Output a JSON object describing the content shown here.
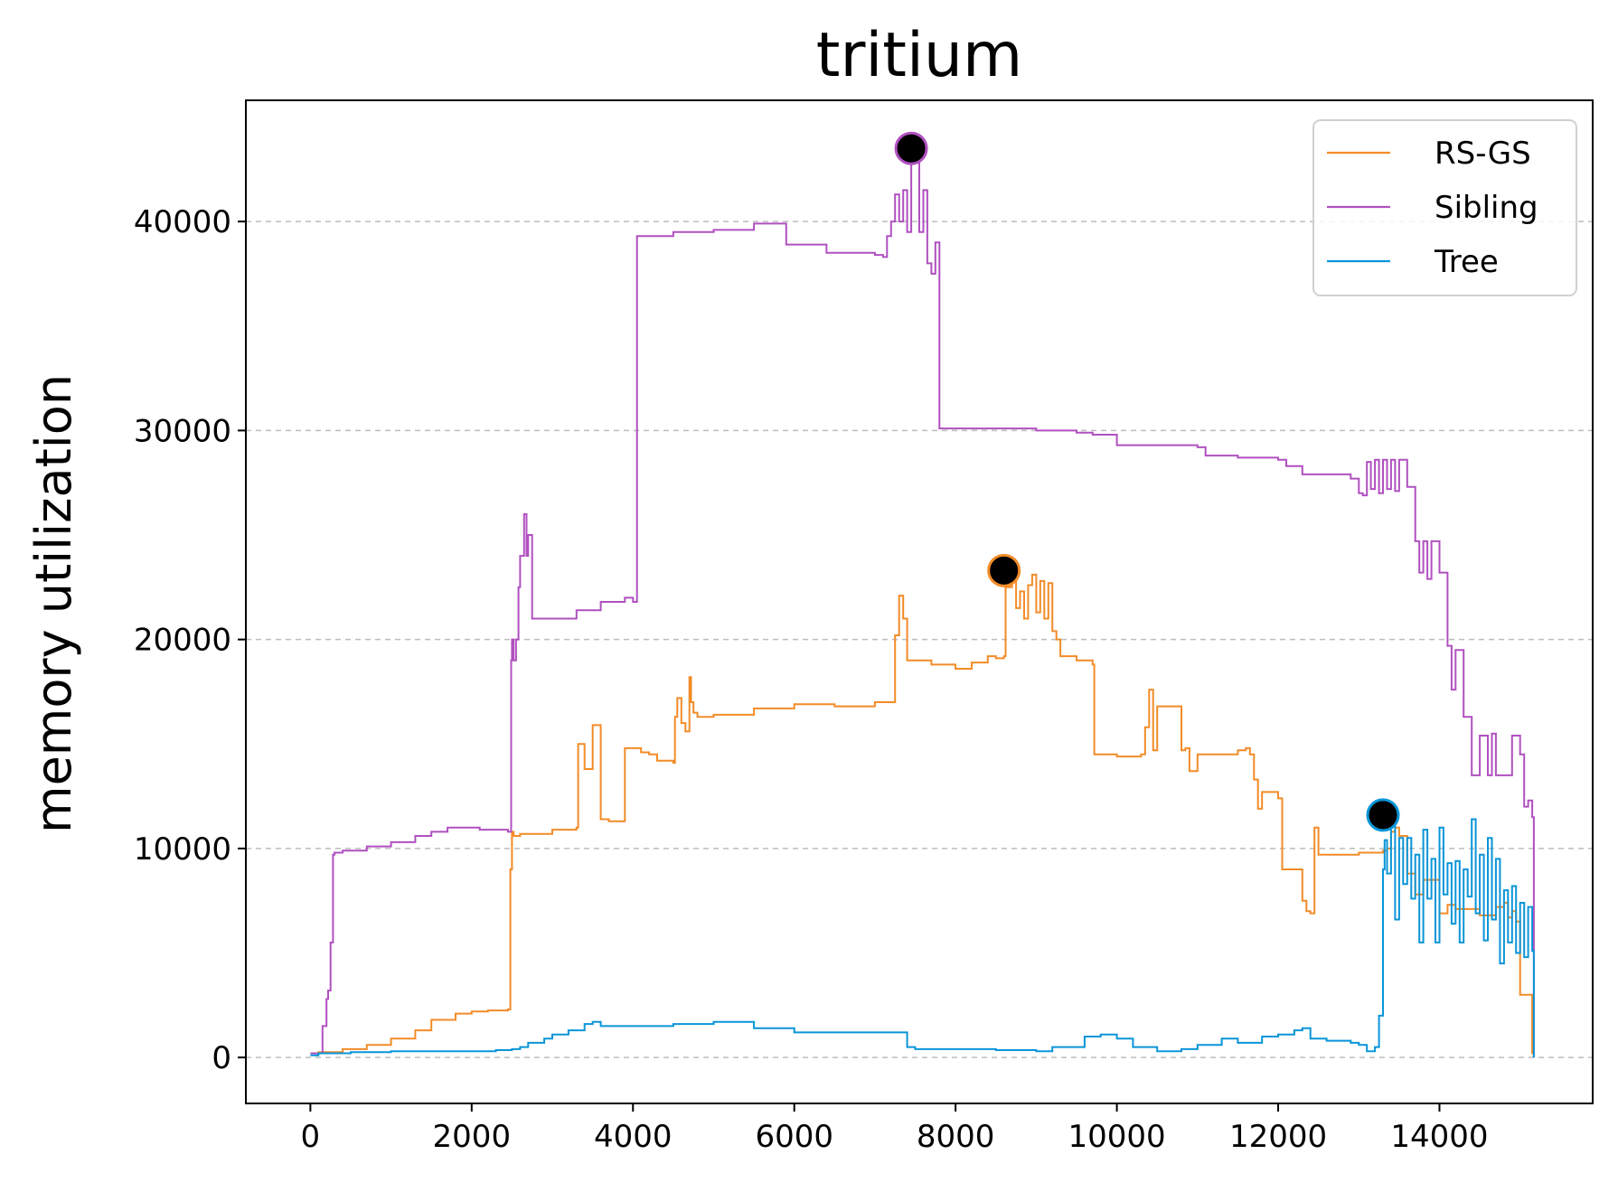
{
  "chart_data": {
    "type": "line",
    "title": "tritium",
    "xlabel": "",
    "ylabel": "memory utilization",
    "xlim": [
      -800,
      15900
    ],
    "ylim": [
      -2200,
      45800
    ],
    "xticks": [
      0,
      2000,
      4000,
      6000,
      8000,
      10000,
      12000,
      14000
    ],
    "yticks": [
      0,
      10000,
      20000,
      30000,
      40000
    ],
    "grid": "y-dashed",
    "legend": "top-right",
    "series": [
      {
        "name": "RS-GS",
        "color": "#f28c28",
        "x": [
          0,
          100,
          400,
          700,
          1000,
          1300,
          1500,
          1800,
          2000,
          2200,
          2450,
          2480,
          2500,
          2520,
          2600,
          3000,
          3300,
          3320,
          3400,
          3500,
          3600,
          3700,
          3900,
          4100,
          4200,
          4300,
          4500,
          4520,
          4550,
          4600,
          4650,
          4700,
          4720,
          4750,
          4800,
          5000,
          5500,
          6000,
          6500,
          7000,
          7200,
          7250,
          7300,
          7350,
          7400,
          7700,
          8000,
          8200,
          8400,
          8500,
          8600,
          8620,
          8700,
          8750,
          8800,
          8850,
          8900,
          8950,
          9000,
          9050,
          9100,
          9150,
          9200,
          9250,
          9300,
          9500,
          9700,
          9720,
          10000,
          10300,
          10350,
          10400,
          10450,
          10500,
          10800,
          10850,
          10900,
          11000,
          11500,
          11600,
          11650,
          11700,
          11750,
          11800,
          12000,
          12050,
          12300,
          12350,
          12400,
          12450,
          12500,
          13000,
          13300,
          13350,
          13400,
          13450,
          13500,
          13600,
          13700,
          13800,
          14000,
          14100,
          14200,
          14500,
          14600,
          14700,
          14800,
          14850,
          14900,
          14950,
          15000,
          15150,
          15170
        ],
        "y": [
          200,
          250,
          400,
          600,
          900,
          1300,
          1800,
          2100,
          2200,
          2250,
          2300,
          9000,
          10800,
          10600,
          10700,
          10900,
          11000,
          15000,
          13800,
          15900,
          11400,
          11300,
          14800,
          14600,
          14500,
          14200,
          14100,
          16300,
          17200,
          16000,
          15600,
          18200,
          17000,
          16500,
          16300,
          16400,
          16700,
          16900,
          16800,
          17000,
          17000,
          20200,
          22100,
          21000,
          19000,
          18800,
          18600,
          18900,
          19200,
          19100,
          19200,
          22500,
          23200,
          21500,
          22300,
          21000,
          22600,
          23100,
          21300,
          22800,
          21000,
          22700,
          20400,
          20000,
          19200,
          19000,
          18800,
          14500,
          14400,
          14500,
          15800,
          17600,
          14700,
          16800,
          14700,
          14800,
          13700,
          14500,
          14700,
          14800,
          14500,
          13300,
          11900,
          12700,
          12400,
          9000,
          7500,
          7000,
          6900,
          11000,
          9700,
          9800,
          9900,
          10000,
          10800,
          11000,
          10600,
          8800,
          7800,
          8500,
          6900,
          7300,
          7100,
          6800,
          6800,
          7200,
          7400,
          6700,
          7000,
          6500,
          3000,
          200,
          0
        ]
      },
      {
        "name": "Sibling",
        "color": "#b050c0",
        "x": [
          0,
          150,
          200,
          220,
          250,
          280,
          300,
          400,
          700,
          1000,
          1300,
          1500,
          1700,
          1900,
          2100,
          2300,
          2450,
          2490,
          2500,
          2520,
          2550,
          2580,
          2600,
          2650,
          2680,
          2700,
          2750,
          3000,
          3300,
          3600,
          3900,
          4000,
          4050,
          4500,
          5000,
          5500,
          5800,
          5900,
          6300,
          6400,
          7000,
          7100,
          7150,
          7200,
          7250,
          7300,
          7350,
          7400,
          7450,
          7500,
          7550,
          7600,
          7650,
          7700,
          7750,
          7800,
          8000,
          9000,
          9500,
          9700,
          10000,
          10500,
          11000,
          11100,
          11500,
          12000,
          12100,
          12300,
          12800,
          12900,
          13000,
          13050,
          13100,
          13150,
          13200,
          13250,
          13300,
          13350,
          13400,
          13450,
          13500,
          13600,
          13700,
          13750,
          13800,
          13850,
          13900,
          14000,
          14100,
          14150,
          14200,
          14300,
          14400,
          14500,
          14600,
          14650,
          14700,
          14800,
          14900,
          15000,
          15050,
          15100,
          15150,
          15170
        ],
        "y": [
          200,
          1500,
          2800,
          3200,
          5500,
          9700,
          9800,
          9900,
          10100,
          10300,
          10600,
          10800,
          11000,
          11000,
          10900,
          10900,
          10800,
          19000,
          20000,
          19000,
          20000,
          22500,
          24000,
          26000,
          24000,
          25000,
          21000,
          21000,
          21400,
          21800,
          22000,
          21800,
          39300,
          39500,
          39600,
          39900,
          39900,
          38900,
          38900,
          38500,
          38400,
          38300,
          39300,
          40000,
          41300,
          40000,
          41500,
          39500,
          43500,
          43000,
          39500,
          41500,
          38000,
          37500,
          39000,
          30100,
          30100,
          30000,
          29900,
          29800,
          29300,
          29300,
          29200,
          28800,
          28700,
          28600,
          28300,
          27900,
          27900,
          27700,
          27000,
          26900,
          28500,
          27200,
          28600,
          27000,
          28600,
          27200,
          28600,
          27100,
          28600,
          27300,
          24700,
          23200,
          24700,
          22900,
          24700,
          23200,
          19700,
          17600,
          19500,
          16300,
          13500,
          15400,
          13500,
          15500,
          13500,
          13500,
          15400,
          14500,
          12000,
          12300,
          11500,
          0
        ]
      },
      {
        "name": "Tree",
        "color": "#0a95d8",
        "x": [
          0,
          100,
          500,
          1000,
          1500,
          2000,
          2300,
          2500,
          2600,
          2700,
          2900,
          3000,
          3200,
          3400,
          3500,
          3600,
          4000,
          4500,
          5000,
          5400,
          5500,
          6000,
          7000,
          7200,
          7400,
          7500,
          7800,
          8000,
          8500,
          9000,
          9200,
          9600,
          9800,
          10000,
          10200,
          10500,
          10800,
          11000,
          11300,
          11500,
          11800,
          12000,
          12200,
          12300,
          12400,
          12600,
          12900,
          13000,
          13100,
          13200,
          13250,
          13300,
          13320,
          13350,
          13400,
          13450,
          13500,
          13550,
          13600,
          13650,
          13700,
          13750,
          13800,
          13850,
          13900,
          13950,
          14000,
          14050,
          14100,
          14150,
          14200,
          14250,
          14300,
          14350,
          14400,
          14450,
          14500,
          14550,
          14600,
          14650,
          14700,
          14750,
          14800,
          14850,
          14900,
          14950,
          15000,
          15050,
          15100,
          15150,
          15170
        ],
        "y": [
          100,
          200,
          250,
          300,
          300,
          300,
          350,
          400,
          500,
          700,
          900,
          1100,
          1300,
          1600,
          1700,
          1500,
          1500,
          1600,
          1700,
          1700,
          1400,
          1200,
          1200,
          1200,
          500,
          400,
          400,
          400,
          350,
          300,
          500,
          1000,
          1100,
          900,
          500,
          300,
          400,
          600,
          900,
          700,
          1000,
          1100,
          1300,
          1400,
          900,
          800,
          700,
          600,
          300,
          500,
          2000,
          9000,
          10400,
          8800,
          11300,
          6600,
          10500,
          8300,
          10500,
          7600,
          9700,
          5500,
          10900,
          7600,
          9500,
          5500,
          11000,
          7800,
          9300,
          6400,
          9400,
          5500,
          9000,
          7700,
          11400,
          6900,
          9700,
          5600,
          10500,
          6600,
          9500,
          4500,
          8000,
          5500,
          8200,
          5000,
          7400,
          4800,
          7200,
          5100,
          0
        ]
      }
    ],
    "markers": [
      {
        "series": "Sibling",
        "x": 7450,
        "y": 43500
      },
      {
        "series": "RS-GS",
        "x": 8600,
        "y": 23300
      },
      {
        "series": "Tree",
        "x": 13300,
        "y": 11600
      }
    ]
  }
}
